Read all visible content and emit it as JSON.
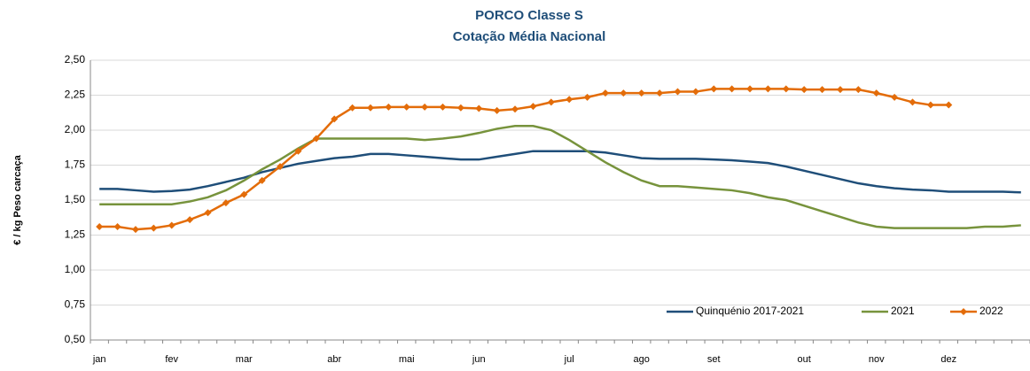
{
  "chart_data": {
    "type": "line",
    "title": "PORCO Classe S",
    "subtitle": "Cotação Média Nacional",
    "y_label": "€ / kg Peso carcaça",
    "categories": [
      "jan",
      null,
      null,
      null,
      "fev",
      null,
      null,
      null,
      "mar",
      null,
      null,
      null,
      null,
      "abr",
      null,
      null,
      null,
      "mai",
      null,
      null,
      null,
      "jun",
      null,
      null,
      null,
      null,
      "jul",
      null,
      null,
      null,
      "ago",
      null,
      null,
      null,
      "set",
      null,
      null,
      null,
      null,
      "out",
      null,
      null,
      null,
      "nov",
      null,
      null,
      null,
      "dez",
      null,
      null,
      null,
      null
    ],
    "ylim": [
      0.5,
      2.5
    ],
    "yticks": [
      {
        "value": 0.5,
        "label": "0,50"
      },
      {
        "value": 0.75,
        "label": "0,75"
      },
      {
        "value": 1,
        "label": "1,00"
      },
      {
        "value": 1.25,
        "label": "1,25"
      },
      {
        "value": 1.5,
        "label": "1,50"
      },
      {
        "value": 1.75,
        "label": "1,75"
      },
      {
        "value": 2,
        "label": "2,00"
      },
      {
        "value": 2.25,
        "label": "2,25"
      },
      {
        "value": 2.5,
        "label": "2,50"
      }
    ],
    "grid": true,
    "legend": "bottom-right",
    "series": [
      {
        "name": "Quinquénio 2017-2021",
        "color": "#1f4e79",
        "marker": false,
        "values": [
          1.58,
          1.58,
          1.57,
          1.56,
          1.565,
          1.575,
          1.6,
          1.63,
          1.66,
          1.7,
          1.73,
          1.76,
          1.78,
          1.8,
          1.81,
          1.83,
          1.83,
          1.82,
          1.81,
          1.8,
          1.79,
          1.79,
          1.81,
          1.83,
          1.85,
          1.85,
          1.85,
          1.85,
          1.84,
          1.82,
          1.8,
          1.795,
          1.795,
          1.795,
          1.79,
          1.785,
          1.775,
          1.765,
          1.74,
          1.71,
          1.68,
          1.65,
          1.62,
          1.6,
          1.585,
          1.575,
          1.57,
          1.56,
          1.56,
          1.56,
          1.56,
          1.555
        ]
      },
      {
        "name": "2021",
        "color": "#77933c",
        "marker": false,
        "values": [
          1.47,
          1.47,
          1.47,
          1.47,
          1.47,
          1.49,
          1.52,
          1.57,
          1.64,
          1.72,
          1.79,
          1.87,
          1.94,
          1.94,
          1.94,
          1.94,
          1.94,
          1.94,
          1.93,
          1.94,
          1.955,
          1.98,
          2.01,
          2.03,
          2.03,
          2.0,
          1.93,
          1.85,
          1.77,
          1.7,
          1.64,
          1.6,
          1.6,
          1.59,
          1.58,
          1.57,
          1.55,
          1.52,
          1.5,
          1.46,
          1.42,
          1.38,
          1.34,
          1.31,
          1.3,
          1.3,
          1.3,
          1.3,
          1.3,
          1.31,
          1.31,
          1.32
        ]
      },
      {
        "name": "2022",
        "color": "#e36c09",
        "marker": true,
        "values": [
          1.31,
          1.31,
          1.29,
          1.3,
          1.32,
          1.36,
          1.41,
          1.48,
          1.54,
          1.64,
          1.74,
          1.85,
          1.94,
          2.08,
          2.16,
          2.16,
          2.165,
          2.165,
          2.165,
          2.165,
          2.16,
          2.155,
          2.14,
          2.15,
          2.17,
          2.2,
          2.22,
          2.235,
          2.265,
          2.265,
          2.265,
          2.265,
          2.275,
          2.275,
          2.295,
          2.295,
          2.295,
          2.295,
          2.295,
          2.29,
          2.29,
          2.29,
          2.29,
          2.265,
          2.235,
          2.2,
          2.18,
          2.18,
          null,
          null,
          null,
          null
        ]
      }
    ]
  }
}
